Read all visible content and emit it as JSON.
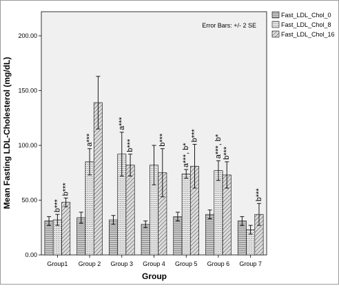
{
  "chart_data": {
    "type": "bar",
    "x_label": "Group",
    "y_label": "Mean Fasting LDL-Cholesterol (mg/dL)",
    "annotation": "Error Bars: +/- 2 SE",
    "categories": [
      "Group1",
      "Group 2",
      "Group 3",
      "Group 4",
      "Group 5",
      "Group 6",
      "Group 7"
    ],
    "series": [
      {
        "name": "Fast_LDL_Chol_0",
        "color": "#dcdcdc",
        "pattern": "horizontal",
        "values": [
          31,
          34,
          32,
          28,
          35,
          37,
          31
        ],
        "errors": [
          4,
          5,
          4,
          3,
          4,
          4,
          4
        ],
        "annotations": [
          null,
          null,
          null,
          null,
          null,
          null,
          null
        ]
      },
      {
        "name": "Fast_LDL_Chol_8",
        "color": "#dcdcdc",
        "pattern": "dots",
        "values": [
          32,
          85,
          92,
          82,
          74,
          77,
          23
        ],
        "errors": [
          5,
          12,
          20,
          18,
          4,
          9,
          4
        ],
        "annotations": [
          "b***",
          "a***",
          "a***",
          null,
          "a***, b*",
          "a***, b*",
          null
        ]
      },
      {
        "name": "Fast_LDL_Chol_16",
        "color": "#dcdcdc",
        "pattern": "diagonal",
        "values": [
          48,
          139,
          82,
          75,
          81,
          73,
          37
        ],
        "errors": [
          4,
          24,
          10,
          22,
          20,
          12,
          10
        ],
        "annotations": [
          "b***",
          null,
          "b***",
          "b***",
          "b***",
          "b***",
          "b***"
        ]
      }
    ],
    "ylim": [
      0,
      222
    ],
    "yticks": [
      {
        "value": 0,
        "label": "0.00"
      },
      {
        "value": 50,
        "label": "50.00"
      },
      {
        "value": 100,
        "label": "100.00"
      },
      {
        "value": 150,
        "label": "150.00"
      },
      {
        "value": 200,
        "label": "200.00"
      }
    ],
    "grid": false,
    "legend": "top-right"
  }
}
